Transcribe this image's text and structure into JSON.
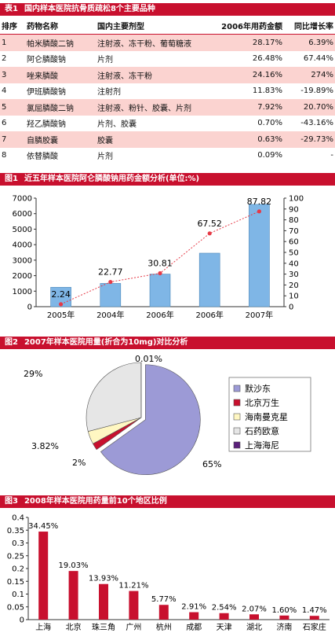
{
  "table1": {
    "label": "表1",
    "title": "国内样本医院抗骨质疏松8个主要品种",
    "headers": [
      "排序",
      "药物名称",
      "国内主要剂型",
      "2006年用药金额",
      "同比增长率"
    ],
    "rows": [
      [
        "1",
        "帕米膦酸二钠",
        "注射液、冻干粉、葡萄糖液",
        "28.17%",
        "6.39%"
      ],
      [
        "2",
        "阿仑膦酸钠",
        "片剂",
        "26.48%",
        "67.44%"
      ],
      [
        "3",
        "唑来膦酸",
        "注射液、冻干粉",
        "24.16%",
        "274%"
      ],
      [
        "4",
        "伊班膦酸钠",
        "注射剂",
        "11.83%",
        "-19.89%"
      ],
      [
        "5",
        "氯屈膦酸二钠",
        "注射液、粉针、胶囊、片剂",
        "7.92%",
        "20.70%"
      ],
      [
        "6",
        "羟乙膦酸钠",
        "片剂、胶囊",
        "0.70%",
        "-43.16%"
      ],
      [
        "7",
        "自膦胶囊",
        "胶囊",
        "0.63%",
        "-29.73%"
      ],
      [
        "8",
        "依替膦酸",
        "片剂",
        "0.09%",
        "-"
      ]
    ]
  },
  "figure1": {
    "label": "图1",
    "title": "近五年样本医院阿仑膦酸钠用药金额分析(单位:%)"
  },
  "figure2": {
    "label": "图2",
    "title": "2007年样本医院用量(折合为10mg)对比分析"
  },
  "figure3": {
    "label": "图3",
    "title": "2008年样本医院用药量前10个地区比例"
  },
  "chart_data": [
    {
      "type": "bar",
      "categories": [
        "2005年",
        "2004年",
        "2006年",
        "2006年",
        "2007年"
      ],
      "series": [
        {
          "values": [
            1250,
            1500,
            2100,
            3450,
            6600
          ]
        },
        {
          "type": "line",
          "values": [
            2.24,
            22.77,
            30.81,
            67.52,
            87.82
          ],
          "axis": "right"
        }
      ],
      "data_labels": [
        "2.24",
        "22.77",
        "30.81",
        "67.52",
        "87.82"
      ],
      "ylim": [
        0,
        7000
      ],
      "yticks": [
        "0",
        "1000",
        "2000",
        "3000",
        "4000",
        "5000",
        "6000",
        "7000"
      ],
      "y2lim": [
        0,
        100
      ],
      "y2ticks": [
        "0",
        "10",
        "20",
        "30",
        "40",
        "50",
        "60",
        "70",
        "80",
        "90",
        "100"
      ],
      "grid": false,
      "colors": {
        "bar": "#7fb6e6",
        "line": "#e63946"
      }
    },
    {
      "type": "pie",
      "labels": [
        "默沙东",
        "北京万生",
        "海南曼克星",
        "石药欧意",
        "上海海尼"
      ],
      "values": [
        65,
        2,
        3.82,
        29,
        0.01
      ],
      "value_labels": [
        "65%",
        "2%",
        "3.82%",
        "29%",
        "0.01%"
      ],
      "legend": "right",
      "colors": [
        "#9c9ad6",
        "#c8102e",
        "#fff7c2",
        "#e6e6e6",
        "#5a1f7a"
      ]
    },
    {
      "type": "bar",
      "categories": [
        "上海",
        "北京",
        "珠三角",
        "广州",
        "杭州",
        "成都",
        "天津",
        "湖北",
        "济南",
        "石家庄"
      ],
      "values": [
        0.3445,
        0.1903,
        0.1393,
        0.1121,
        0.0577,
        0.0291,
        0.0254,
        0.0207,
        0.016,
        0.0147
      ],
      "data_labels": [
        "34.45%",
        "19.03%",
        "13.93%",
        "11.21%",
        "5.77%",
        "2.91%",
        "2.54%",
        "2.07%",
        "1.60%",
        "1.47%"
      ],
      "ylim": [
        0,
        0.4
      ],
      "yticks": [
        "0",
        "0.05",
        "0.1",
        "0.15",
        "0.2",
        "0.25",
        "0.3",
        "0.35",
        "0.4"
      ],
      "grid": false,
      "colors": {
        "bar": "#c8102e"
      }
    }
  ]
}
